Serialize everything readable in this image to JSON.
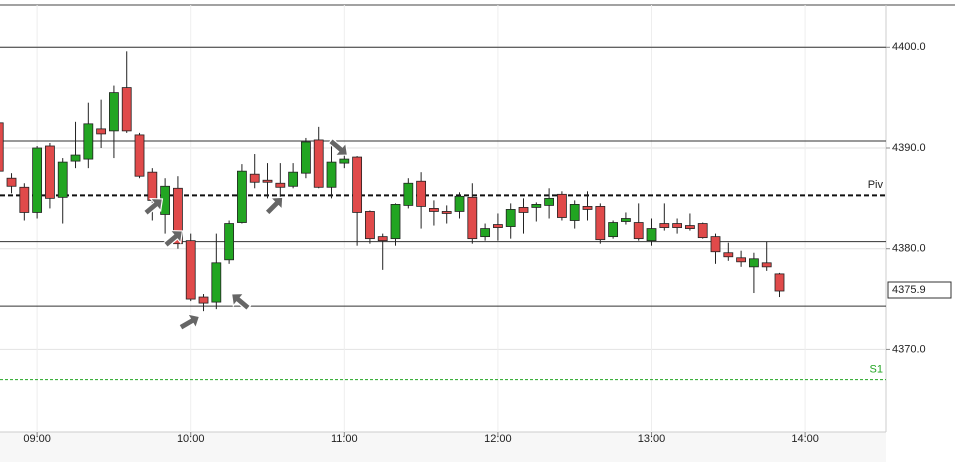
{
  "chart_data": {
    "type": "candlestick",
    "x": [
      525,
      530,
      535,
      540,
      545,
      550,
      555,
      560,
      565,
      570,
      575,
      580,
      585,
      590,
      595,
      600,
      605,
      610,
      615,
      620,
      625,
      630,
      635,
      640,
      645,
      650,
      655,
      660,
      665,
      670,
      675,
      680,
      685,
      690,
      695,
      700,
      705,
      710,
      715,
      720,
      725,
      730,
      735,
      740,
      745,
      750,
      755,
      760,
      765,
      770,
      775,
      780,
      785,
      790,
      795,
      800,
      805,
      810,
      815,
      820,
      825,
      830
    ],
    "open": [
      4392.5,
      4387.0,
      4386.1,
      4383.6,
      4390.2,
      4385.1,
      4388.7,
      4388.9,
      4391.9,
      4391.7,
      4396.0,
      4391.3,
      4387.6,
      4383.4,
      4386.0,
      4380.8,
      4375.2,
      4374.7,
      4378.9,
      4382.6,
      4387.4,
      4386.8,
      4386.5,
      4386.2,
      4387.5,
      4390.8,
      4386.1,
      4388.5,
      4389.1,
      4383.7,
      4381.2,
      4381.0,
      4384.3,
      4386.7,
      4384.0,
      4383.7,
      4383.7,
      4385.1,
      4381.2,
      4382.4,
      4382.2,
      4384.1,
      4384.1,
      4384.3,
      4385.4,
      4382.8,
      4384.2,
      4384.2,
      4381.2,
      4382.7,
      4382.6,
      4380.8,
      4382.5,
      4382.5,
      4382.3,
      4382.5,
      4381.2,
      4379.6,
      4379.1,
      4378.2,
      4378.6,
      4377.5
    ],
    "high": [
      4393.0,
      4387.5,
      4386.5,
      4390.2,
      4390.5,
      4389.0,
      4392.6,
      4394.5,
      4394.8,
      4396.2,
      4399.6,
      4391.5,
      4388.0,
      4387.0,
      4387.2,
      4381.5,
      4375.5,
      4381.5,
      4382.8,
      4388.4,
      4389.4,
      4388.5,
      4388.5,
      4388.5,
      4391.0,
      4392.1,
      4390.5,
      4389.5,
      4389.2,
      4383.8,
      4381.5,
      4384.5,
      4387.0,
      4387.6,
      4384.8,
      4384.3,
      4385.6,
      4386.5,
      4382.5,
      4383.5,
      4384.5,
      4385.0,
      4384.6,
      4386.0,
      4385.7,
      4384.8,
      4385.7,
      4384.5,
      4382.8,
      4383.6,
      4384.5,
      4383.0,
      4384.5,
      4383.0,
      4383.5,
      4382.6,
      4381.5,
      4380.6,
      4379.8,
      4379.6,
      4380.7,
      4377.6
    ],
    "low": [
      4387.0,
      4385.5,
      4382.8,
      4383.0,
      4384.0,
      4382.5,
      4388.0,
      4388.0,
      4390.0,
      4389.0,
      4391.5,
      4387.0,
      4382.8,
      4381.5,
      4380.0,
      4374.8,
      4373.8,
      4374.0,
      4378.5,
      4382.5,
      4386.0,
      4385.0,
      4385.0,
      4386.0,
      4387.0,
      4386.0,
      4385.0,
      4388.0,
      4380.3,
      4380.5,
      4377.9,
      4380.3,
      4384.0,
      4382.0,
      4382.3,
      4382.5,
      4383.0,
      4380.5,
      4380.8,
      4380.8,
      4381.0,
      4381.5,
      4382.7,
      4383.0,
      4382.8,
      4382.0,
      4382.8,
      4380.5,
      4381.0,
      4382.4,
      4380.8,
      4380.3,
      4381.8,
      4381.5,
      4381.8,
      4381.0,
      4378.5,
      4378.8,
      4378.2,
      4375.6,
      4377.8,
      4375.2
    ],
    "close": [
      4387.7,
      4386.2,
      4383.6,
      4390.0,
      4385.0,
      4388.6,
      4389.3,
      4392.4,
      4391.4,
      4395.5,
      4391.7,
      4387.2,
      4384.8,
      4386.2,
      4380.5,
      4375.0,
      4374.6,
      4378.6,
      4382.5,
      4387.7,
      4386.6,
      4386.6,
      4386.1,
      4387.6,
      4390.6,
      4386.1,
      4388.6,
      4388.9,
      4383.6,
      4381.0,
      4380.8,
      4384.4,
      4386.5,
      4384.2,
      4383.7,
      4383.5,
      4385.2,
      4381.0,
      4382.0,
      4382.1,
      4383.9,
      4383.6,
      4384.4,
      4385.0,
      4383.1,
      4384.4,
      4383.9,
      4380.9,
      4382.6,
      4383.0,
      4381.0,
      4382.0,
      4382.1,
      4382.1,
      4382.0,
      4381.1,
      4379.7,
      4379.2,
      4378.7,
      4379.0,
      4378.2,
      4375.8
    ],
    "up_color": "#22a522",
    "down_color": "#e04a4a",
    "xlim": [
      525.5,
      871.6
    ],
    "xticks": [
      {
        "value": 540,
        "label": "09:00"
      },
      {
        "value": 600,
        "label": "10:00"
      },
      {
        "value": 660,
        "label": "11:00"
      },
      {
        "value": 720,
        "label": "12:00"
      },
      {
        "value": 780,
        "label": "13:00"
      },
      {
        "value": 840,
        "label": "14:00"
      }
    ],
    "ylim": [
      4361.8,
      4404.2
    ],
    "yticks": [
      {
        "value": 4370,
        "label": "4370.0"
      },
      {
        "value": 4380,
        "label": "4380.0"
      },
      {
        "value": 4390,
        "label": "4390.0"
      },
      {
        "value": 4400,
        "label": "4400.0"
      }
    ],
    "grid": true,
    "lines": [
      4400.0,
      4390.7,
      4380.7,
      4374.3
    ],
    "pivot": {
      "name": "Piv",
      "value": 4385.3
    },
    "support": {
      "name": "S1",
      "value": 4367.0,
      "color": "#22a522"
    },
    "last_price": 4375.9
  }
}
